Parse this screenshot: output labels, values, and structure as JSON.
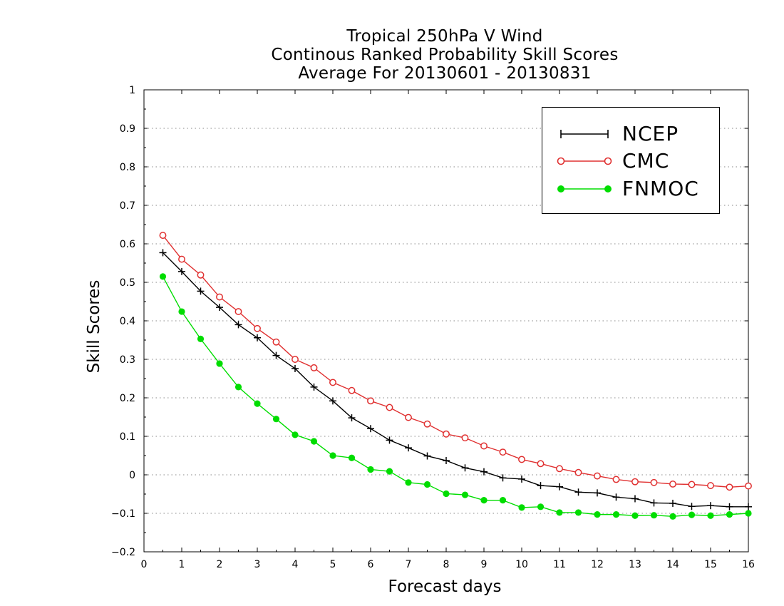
{
  "chart_data": {
    "type": "line",
    "title": [
      "Tropical 250hPa V Wind",
      "Continous Ranked Probability Skill Scores",
      "Average For 20130601 - 20130831"
    ],
    "xlabel": "Forecast days",
    "ylabel": "Skill Scores",
    "xlim": [
      0,
      16
    ],
    "ylim": [
      -0.2,
      1
    ],
    "xticks": [
      "0",
      "1",
      "2",
      "3",
      "4",
      "5",
      "6",
      "7",
      "8",
      "9",
      "10",
      "11",
      "12",
      "13",
      "14",
      "15",
      "16"
    ],
    "yticks": [
      "−0.2",
      "−0.1",
      "0",
      "0.1",
      "0.2",
      "0.3",
      "0.4",
      "0.5",
      "0.6",
      "0.7",
      "0.8",
      "0.9",
      "1"
    ],
    "grid": "horizontal-dotted",
    "legend_position": "top-right",
    "x": [
      0.5,
      1,
      1.5,
      2,
      2.5,
      3,
      3.5,
      4,
      4.5,
      5,
      5.5,
      6,
      6.5,
      7,
      7.5,
      8,
      8.5,
      9,
      9.5,
      10,
      10.5,
      11,
      11.5,
      12,
      12.5,
      13,
      13.5,
      14,
      14.5,
      15,
      15.5,
      16
    ],
    "series": [
      {
        "name": "NCEP",
        "color": "#000000",
        "marker": "plus",
        "values": [
          0.577,
          0.528,
          0.477,
          0.435,
          0.39,
          0.356,
          0.31,
          0.276,
          0.228,
          0.192,
          0.148,
          0.12,
          0.09,
          0.07,
          0.049,
          0.037,
          0.018,
          0.008,
          -0.008,
          -0.011,
          -0.028,
          -0.031,
          -0.045,
          -0.047,
          -0.058,
          -0.062,
          -0.073,
          -0.074,
          -0.082,
          -0.08,
          -0.083,
          -0.083
        ]
      },
      {
        "name": "CMC",
        "color": "#e03030",
        "marker": "open-circle",
        "values": [
          0.622,
          0.56,
          0.519,
          0.462,
          0.424,
          0.38,
          0.345,
          0.3,
          0.278,
          0.24,
          0.219,
          0.192,
          0.175,
          0.149,
          0.132,
          0.106,
          0.096,
          0.075,
          0.059,
          0.04,
          0.029,
          0.016,
          0.006,
          -0.003,
          -0.012,
          -0.018,
          -0.02,
          -0.024,
          -0.025,
          -0.028,
          -0.032,
          -0.029
        ]
      },
      {
        "name": "FNMOC",
        "color": "#00dd00",
        "marker": "filled-circle",
        "values": [
          0.515,
          0.424,
          0.353,
          0.289,
          0.228,
          0.185,
          0.145,
          0.104,
          0.087,
          0.05,
          0.044,
          0.014,
          0.009,
          -0.02,
          -0.025,
          -0.049,
          -0.052,
          -0.066,
          -0.066,
          -0.085,
          -0.083,
          -0.098,
          -0.098,
          -0.103,
          -0.103,
          -0.106,
          -0.105,
          -0.108,
          -0.104,
          -0.106,
          -0.103,
          -0.1
        ]
      }
    ]
  }
}
